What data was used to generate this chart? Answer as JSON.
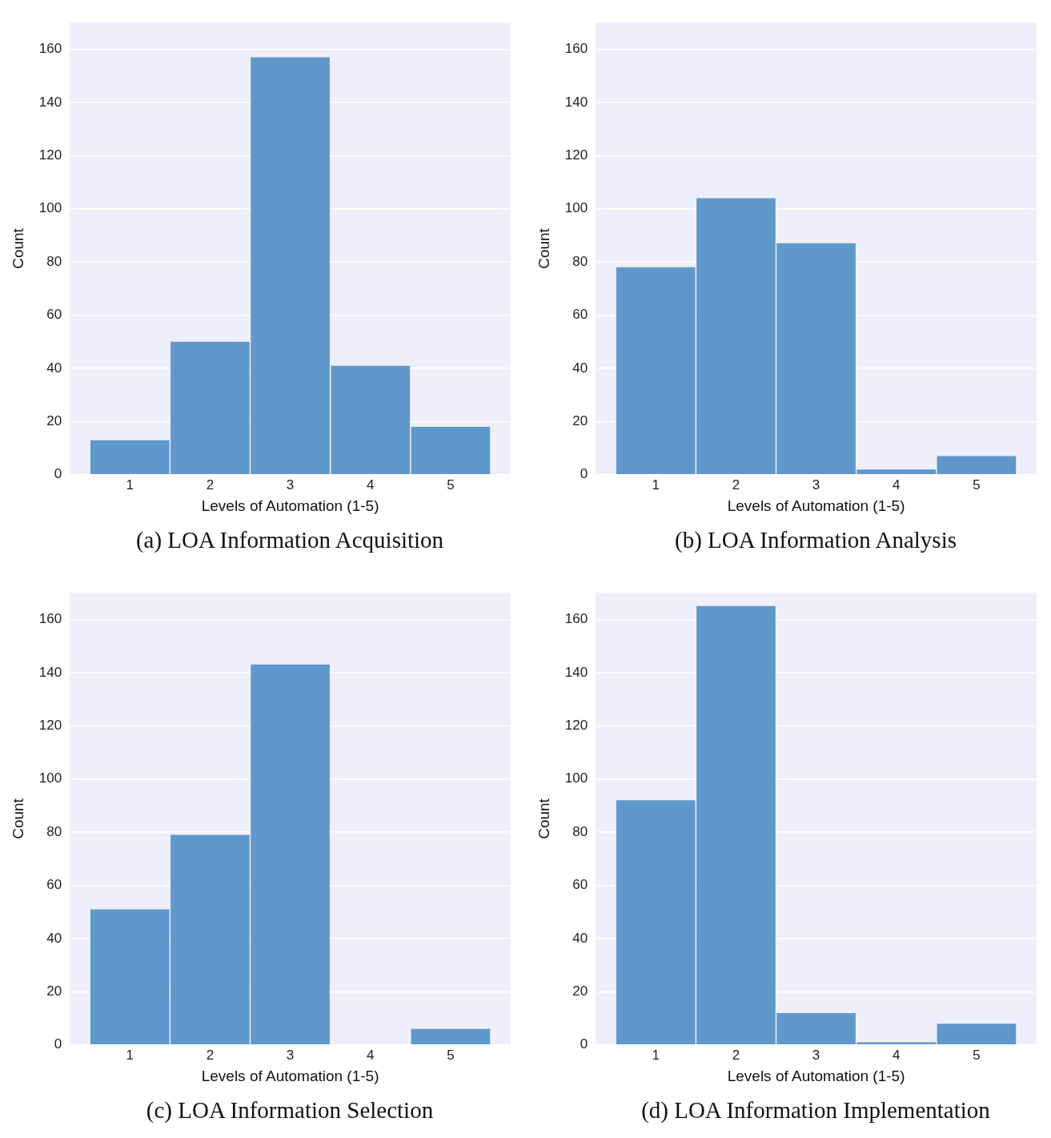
{
  "chart_data": [
    {
      "type": "histogram",
      "title": "(a) LOA Information Acquisition",
      "xlabel": "Levels of Automation (1-5)",
      "ylabel": "Count",
      "bins": [
        0.5,
        1.5,
        2.5,
        3.5,
        4.5,
        5.5
      ],
      "values": [
        13,
        50,
        157,
        41,
        18
      ],
      "color": "#5f98cc",
      "xlim": [
        0.25,
        5.75
      ],
      "xticks": [
        1,
        2,
        3,
        4,
        5
      ],
      "ylim": [
        0,
        170
      ],
      "yticks": [
        0,
        20,
        40,
        60,
        80,
        100,
        120,
        140,
        160
      ],
      "grid": "y"
    },
    {
      "type": "histogram",
      "title": "(b) LOA Information Analysis",
      "xlabel": "Levels of Automation (1-5)",
      "ylabel": "Count",
      "bins": [
        0.5,
        1.5,
        2.5,
        3.5,
        4.5,
        5.5
      ],
      "values": [
        78,
        104,
        87,
        2,
        7
      ],
      "color": "#5f98cc",
      "xlim": [
        0.25,
        5.75
      ],
      "xticks": [
        1,
        2,
        3,
        4,
        5
      ],
      "ylim": [
        0,
        170
      ],
      "yticks": [
        0,
        20,
        40,
        60,
        80,
        100,
        120,
        140,
        160
      ],
      "grid": "y"
    },
    {
      "type": "histogram",
      "title": "(c) LOA Information Selection",
      "xlabel": "Levels of Automation (1-5)",
      "ylabel": "Count",
      "bins": [
        0.5,
        1.5,
        2.5,
        3.5,
        4.5,
        5.5
      ],
      "values": [
        51,
        79,
        143,
        0,
        6
      ],
      "color": "#5f98cc",
      "xlim": [
        0.25,
        5.75
      ],
      "xticks": [
        1,
        2,
        3,
        4,
        5
      ],
      "ylim": [
        0,
        170
      ],
      "yticks": [
        0,
        20,
        40,
        60,
        80,
        100,
        120,
        140,
        160
      ],
      "grid": "y"
    },
    {
      "type": "histogram",
      "title": "(d) LOA Information Implementation",
      "xlabel": "Levels of Automation (1-5)",
      "ylabel": "Count",
      "bins": [
        0.5,
        1.5,
        2.5,
        3.5,
        4.5,
        5.5
      ],
      "values": [
        92,
        165,
        12,
        1,
        8
      ],
      "color": "#5f98cc",
      "xlim": [
        0.25,
        5.75
      ],
      "xticks": [
        1,
        2,
        3,
        4,
        5
      ],
      "ylim": [
        0,
        170
      ],
      "yticks": [
        0,
        20,
        40,
        60,
        80,
        100,
        120,
        140,
        160
      ],
      "grid": "y"
    }
  ]
}
